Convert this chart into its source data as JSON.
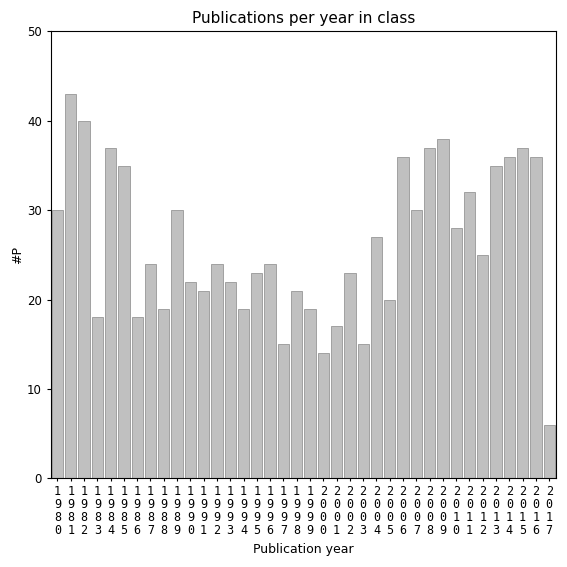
{
  "title": "Publications per year in class",
  "xlabel": "Publication year",
  "ylabel": "#P",
  "years": [
    1980,
    1981,
    1982,
    1983,
    1984,
    1985,
    1986,
    1987,
    1988,
    1989,
    1990,
    1991,
    1992,
    1993,
    1994,
    1995,
    1996,
    1997,
    1998,
    1999,
    2000,
    2001,
    2002,
    2003,
    2004,
    2005,
    2006,
    2007,
    2008,
    2009,
    2010,
    2011,
    2012,
    2013,
    2014,
    2015,
    2016,
    2017
  ],
  "values": [
    30,
    43,
    40,
    18,
    37,
    35,
    18,
    24,
    19,
    30,
    22,
    21,
    24,
    22,
    19,
    23,
    24,
    15,
    21,
    19,
    14,
    17,
    23,
    15,
    27,
    20,
    36,
    30,
    37,
    38,
    28,
    32,
    25,
    35,
    36,
    37,
    36,
    6
  ],
  "bar_color": "#c0c0c0",
  "bar_edge_color": "#888888",
  "ylim": [
    0,
    50
  ],
  "yticks": [
    0,
    10,
    20,
    30,
    40,
    50
  ],
  "bg_color": "#ffffff",
  "title_fontsize": 11,
  "axis_label_fontsize": 9,
  "tick_fontsize": 8.5
}
